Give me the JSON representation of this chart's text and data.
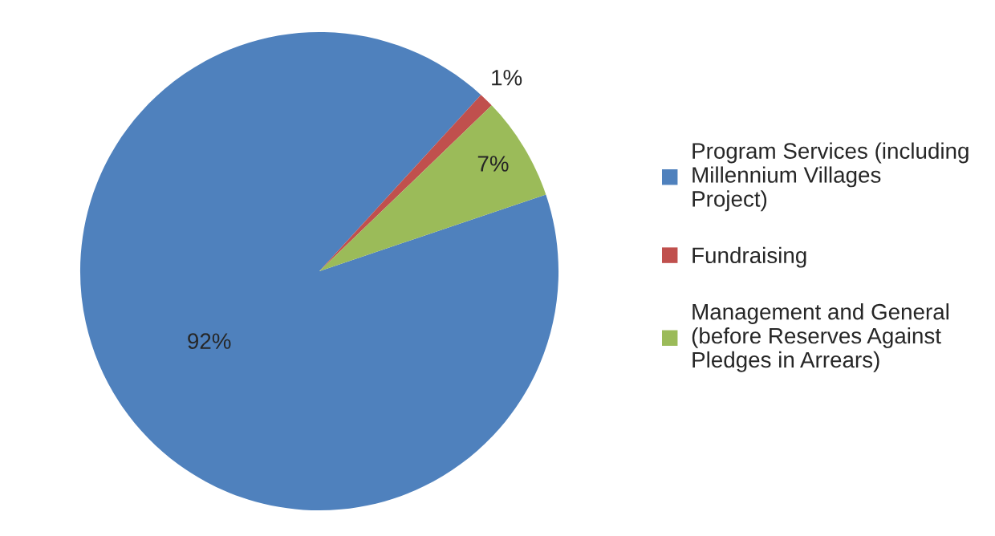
{
  "chart_data": {
    "type": "pie",
    "categories": [
      "Program Services (including Millennium Villages Project)",
      "Fundraising",
      "Management and General (before Reserves Against Pledges in Arrears)"
    ],
    "values": [
      92,
      1,
      7
    ],
    "colors": [
      "#4f81bd",
      "#c0504d",
      "#9bbb59"
    ],
    "value_labels": [
      "92%",
      "1%",
      "7%"
    ],
    "legend": "right"
  }
}
